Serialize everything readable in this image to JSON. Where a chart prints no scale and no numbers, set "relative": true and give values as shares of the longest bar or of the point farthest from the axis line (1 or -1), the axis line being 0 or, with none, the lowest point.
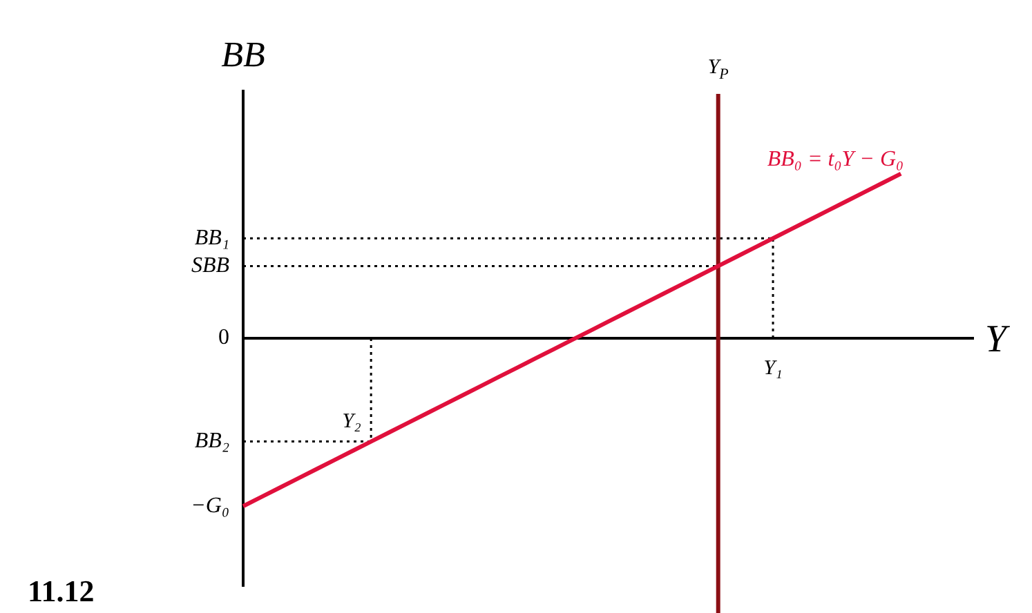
{
  "chart_data": {
    "type": "line",
    "relative": true,
    "xlabel": "Y",
    "ylabel": "BB",
    "legend": false,
    "marker": "none",
    "categories": [
      null,
      null,
      null,
      null,
      null,
      null,
      null,
      null,
      null,
      null,
      null,
      null,
      null,
      null,
      null,
      null,
      null,
      null,
      null,
      null,
      null,
      null,
      null,
      null,
      null,
      null,
      null,
      null,
      null,
      null,
      null,
      null,
      null,
      null,
      null,
      null,
      null,
      null,
      null,
      null,
      null
    ],
    "series": [
      {
        "name": "BB₀ = t₀Y − G₀",
        "color": "#e0103c",
        "values": [
          -1,
          -0.945,
          -0.89,
          -0.835,
          -0.78,
          -0.725,
          -0.67,
          -0.615,
          -0.56,
          -0.505,
          -0.45,
          -0.395,
          -0.34,
          -0.285,
          -0.23,
          -0.175,
          -0.12,
          -0.065,
          -0.01,
          0.045,
          0.1,
          0.155,
          0.21,
          0.265,
          0.32,
          0.375,
          0.43,
          0.485,
          0.54,
          0.595,
          0.65,
          0.705,
          0.76,
          0.815,
          0.87,
          0.925,
          0.98,
          null,
          null,
          null,
          null
        ]
      }
    ],
    "ref_lines": [
      {
        "axis": "y",
        "value": 0.595,
        "label": "BB₁",
        "line_style": "dotted"
      },
      {
        "axis": "y",
        "value": 0.43,
        "label": "SBB",
        "line_style": "dotted"
      },
      {
        "axis": "y",
        "value": -0.615,
        "label": "BB₂",
        "line_style": "dotted"
      }
    ],
    "annotations": [
      {
        "text": "Y₁",
        "y": 0.595
      },
      {
        "text": "Y₂",
        "y": -0.615
      },
      "Y$_{P}$",
      "0",
      "−G₀",
      "11.12"
    ]
  }
}
